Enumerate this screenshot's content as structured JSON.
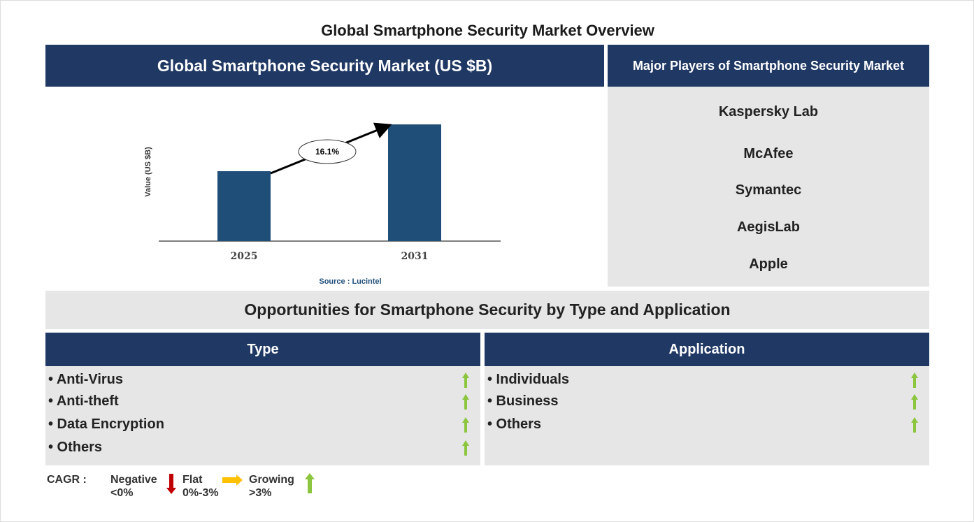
{
  "title": "Global Smartphone Security Market Overview",
  "chart_header": "Global Smartphone Security Market (US $B)",
  "players_header": "Major Players of Smartphone Security Market",
  "players": [
    "Kaspersky Lab",
    "McAfee",
    "Symantec",
    "AegisLab",
    "Apple"
  ],
  "opportunities_title": "Opportunities for Smartphone Security by Type and Application",
  "type": {
    "header": "Type",
    "items": [
      "• Anti-Virus",
      "• Anti-theft",
      "• Data Encryption",
      "• Others"
    ],
    "trends": [
      "growing",
      "growing",
      "growing",
      "growing"
    ]
  },
  "application": {
    "header": "Application",
    "items": [
      "• Individuals",
      "• Business",
      "• Others"
    ],
    "trends": [
      "growing",
      "growing",
      "growing"
    ]
  },
  "legend": {
    "label": "CAGR :",
    "negative": "Negative",
    "negative_range": "<0%",
    "flat": "Flat",
    "flat_range": "0%-3%",
    "growing": "Growing",
    "growing_range": ">3%"
  },
  "colors": {
    "navy": "#1f3864",
    "bar": "#1f4e79",
    "panel": "#e6e6e6",
    "up": "#8cc63f",
    "down": "#c00000",
    "flat": "#ffc000"
  },
  "chart_data": {
    "type": "bar",
    "categories": [
      "2025",
      "2031"
    ],
    "values": [
      1,
      1.67
    ],
    "ylabel": "Value (US $B)",
    "annotation": "16.1%",
    "source": "Source : Lucintel"
  }
}
